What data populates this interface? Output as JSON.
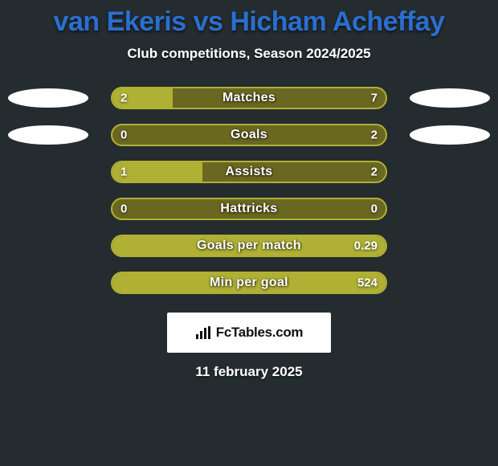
{
  "title_color": "#2a6fcf",
  "background_color": "#242c2f",
  "title": "van Ekeris vs Hicham Acheffay",
  "subtitle": "Club competitions, Season 2024/2025",
  "bar_border_color": "#b0b035",
  "bar_fill_color": "#b0b035",
  "bar_empty_color": "#6a6820",
  "cloud_color": "#ffffff",
  "rows": [
    {
      "label": "Matches",
      "left": "2",
      "right": "7",
      "fill_pct": 22,
      "cloud_left": true,
      "cloud_right": true
    },
    {
      "label": "Goals",
      "left": "0",
      "right": "2",
      "fill_pct": 0,
      "cloud_left": true,
      "cloud_right": true
    },
    {
      "label": "Assists",
      "left": "1",
      "right": "2",
      "fill_pct": 33,
      "cloud_left": false,
      "cloud_right": false
    },
    {
      "label": "Hattricks",
      "left": "0",
      "right": "0",
      "fill_pct": 0,
      "cloud_left": false,
      "cloud_right": false
    },
    {
      "label": "Goals per match",
      "left": "",
      "right": "0.29",
      "fill_pct": 100,
      "cloud_left": false,
      "cloud_right": false
    },
    {
      "label": "Min per goal",
      "left": "",
      "right": "524",
      "fill_pct": 100,
      "cloud_left": false,
      "cloud_right": false
    }
  ],
  "badge_text": "FcTables.com",
  "date": "11 february 2025"
}
